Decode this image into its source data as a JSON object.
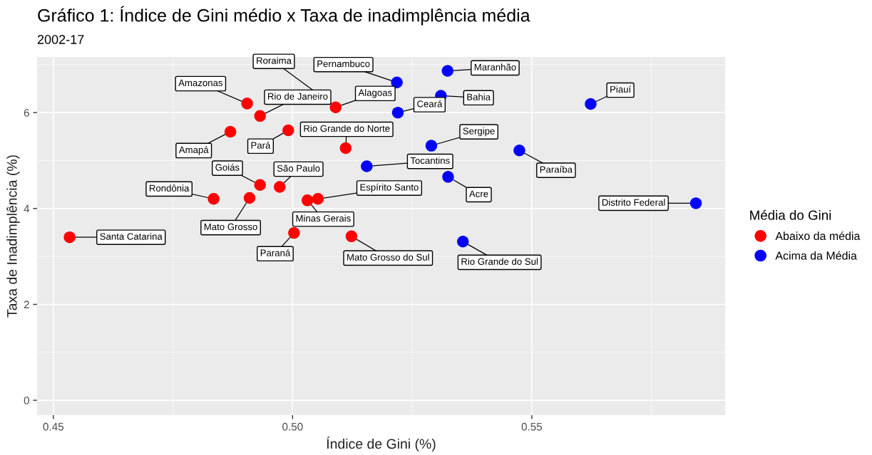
{
  "chart_data": {
    "type": "scatter",
    "title": "Gráfico 1: Índice de Gini médio x Taxa de inadimplência média",
    "subtitle": "2002-17",
    "xlabel": "Índice de Gini (%)",
    "ylabel": "Taxa de Inadimplência (%)",
    "legend_title": "Média do Gini",
    "legend": "right",
    "grid": true,
    "marker": "circle",
    "xlim": [
      0.4466,
      0.5904
    ],
    "ylim": [
      -0.31,
      7.16
    ],
    "xticks": [
      0.45,
      {
        "value": 0.5,
        "label": "0.50"
      },
      0.55
    ],
    "yticks": [
      0,
      2,
      4,
      6
    ],
    "series": [
      {
        "name": "Abaixo da média",
        "color": "#ff0000",
        "x": [
          0.4534,
          0.4835,
          0.491,
          0.4932,
          0.4973,
          0.5031,
          0.5053,
          0.5003,
          0.5123,
          0.4905,
          0.4932,
          0.487,
          0.4991,
          0.5111,
          0.509,
          null
        ],
        "values": [
          3.4,
          4.2,
          4.22,
          4.49,
          4.45,
          4.17,
          4.2,
          3.49,
          3.42,
          6.19,
          5.93,
          5.6,
          5.63,
          5.26,
          6.11,
          null
        ]
      },
      {
        "name": "Acima da Média",
        "color": "#0000ff",
        "x": [
          0.5218,
          0.5324,
          0.531,
          0.522,
          0.5623,
          0.529,
          0.5474,
          0.5155,
          0.5325,
          0.5843,
          0.5356
        ],
        "values": [
          6.63,
          6.87,
          6.35,
          6.0,
          6.18,
          5.31,
          5.21,
          4.88,
          4.66,
          4.11,
          3.31
        ]
      }
    ],
    "annotations": [
      {
        "text": "Santa Catarina",
        "x": 0.4534,
        "y": 3.4
      },
      {
        "text": "Rondônia",
        "x": 0.4835,
        "y": 4.2
      },
      {
        "text": "Mato Grosso",
        "x": 0.491,
        "y": 4.22
      },
      {
        "text": "Goiás",
        "x": 0.4932,
        "y": 4.49
      },
      {
        "text": "São Paulo",
        "x": 0.4973,
        "y": 4.45
      },
      {
        "text": "Minas Gerais",
        "x": 0.5031,
        "y": 4.17
      },
      {
        "text": "Espírito Santo",
        "x": 0.5053,
        "y": 4.2
      },
      {
        "text": "Paraná",
        "x": 0.5003,
        "y": 3.49
      },
      {
        "text": "Mato Grosso do Sul",
        "x": 0.5123,
        "y": 3.42
      },
      {
        "text": "Amazonas",
        "x": 0.4905,
        "y": 6.19
      },
      {
        "text": "Rio de Janeiro",
        "x": 0.4932,
        "y": 5.93
      },
      {
        "text": "Amapá",
        "x": 0.487,
        "y": 5.6
      },
      {
        "text": "Pará",
        "x": 0.4991,
        "y": 5.63
      },
      {
        "text": "Rio Grande do Norte",
        "x": 0.5111,
        "y": 5.26
      },
      {
        "text": "Alagoas",
        "x": 0.509,
        "y": 6.11
      },
      {
        "text": "Roraima",
        "x": 0.5087,
        "y": 6.14
      },
      {
        "text": "Pernambuco",
        "x": 0.5218,
        "y": 6.63
      },
      {
        "text": "Maranhão",
        "x": 0.5324,
        "y": 6.87
      },
      {
        "text": "Bahia",
        "x": 0.531,
        "y": 6.35
      },
      {
        "text": "Ceará",
        "x": 0.522,
        "y": 6.0
      },
      {
        "text": "Piauí",
        "x": 0.5623,
        "y": 6.18
      },
      {
        "text": "Sergipe",
        "x": 0.529,
        "y": 5.31
      },
      {
        "text": "Paraíba",
        "x": 0.5474,
        "y": 5.21
      },
      {
        "text": "Tocantins",
        "x": 0.5155,
        "y": 4.88
      },
      {
        "text": "Acre",
        "x": 0.5325,
        "y": 4.66
      },
      {
        "text": "Distrito Federal",
        "x": 0.5843,
        "y": 4.11
      },
      {
        "text": "Rio Grande do Sul",
        "x": 0.5356,
        "y": 3.31
      }
    ]
  }
}
